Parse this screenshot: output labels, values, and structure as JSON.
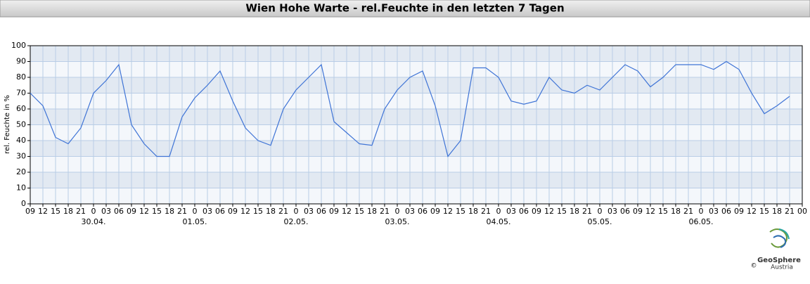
{
  "chart_data": {
    "type": "line",
    "title": "Wien Hohe Warte - rel.Feuchte in den letzten 7 Tagen",
    "y_label": "rel. Feuchte in %",
    "categories": [
      "09",
      "12",
      "15",
      "18",
      "21",
      "0",
      "03",
      "06",
      "09",
      "12",
      "15",
      "18",
      "21",
      "0",
      "03",
      "06",
      "09",
      "12",
      "15",
      "18",
      "21",
      "0",
      "03",
      "06",
      "09",
      "12",
      "15",
      "18",
      "21",
      "0",
      "03",
      "06",
      "09",
      "12",
      "15",
      "18",
      "21",
      "0",
      "03",
      "06",
      "09",
      "12",
      "15",
      "18",
      "21",
      "0",
      "03",
      "06",
      "09",
      "12",
      "15",
      "18",
      "21",
      "0",
      "03",
      "06",
      "09",
      "12",
      "15",
      "18",
      "21",
      "00"
    ],
    "dates": [
      null,
      null,
      null,
      null,
      null,
      "30.04.",
      null,
      null,
      null,
      null,
      null,
      null,
      null,
      "01.05.",
      null,
      null,
      null,
      null,
      null,
      null,
      null,
      "02.05.",
      null,
      null,
      null,
      null,
      null,
      null,
      null,
      "03.05.",
      null,
      null,
      null,
      null,
      null,
      null,
      null,
      "04.05.",
      null,
      null,
      null,
      null,
      null,
      null,
      null,
      "05.05.",
      null,
      null,
      null,
      null,
      null,
      null,
      null,
      "06.05.",
      null,
      null,
      null,
      null,
      null,
      null,
      null,
      null
    ],
    "values": [
      70,
      62,
      42,
      38,
      48,
      70,
      78,
      88,
      50,
      38,
      30,
      30,
      55,
      67,
      75,
      84,
      65,
      48,
      40,
      37,
      60,
      72,
      80,
      88,
      52,
      45,
      38,
      37,
      60,
      72,
      80,
      84,
      62,
      30,
      40,
      86,
      86,
      80,
      65,
      63,
      65,
      80,
      72,
      70,
      75,
      72,
      80,
      88,
      84,
      74,
      80,
      88,
      88,
      88,
      85,
      90,
      85,
      70,
      57,
      62,
      68,
      null
    ],
    "color": "#3f74d6",
    "ylim": [
      0,
      100
    ],
    "yticks": [
      0,
      10,
      20,
      30,
      40,
      50,
      60,
      70,
      80,
      90,
      100
    ],
    "grid": true
  },
  "logo": {
    "name": "GeoSphere",
    "sub": "Austria",
    "copyright": "©"
  }
}
